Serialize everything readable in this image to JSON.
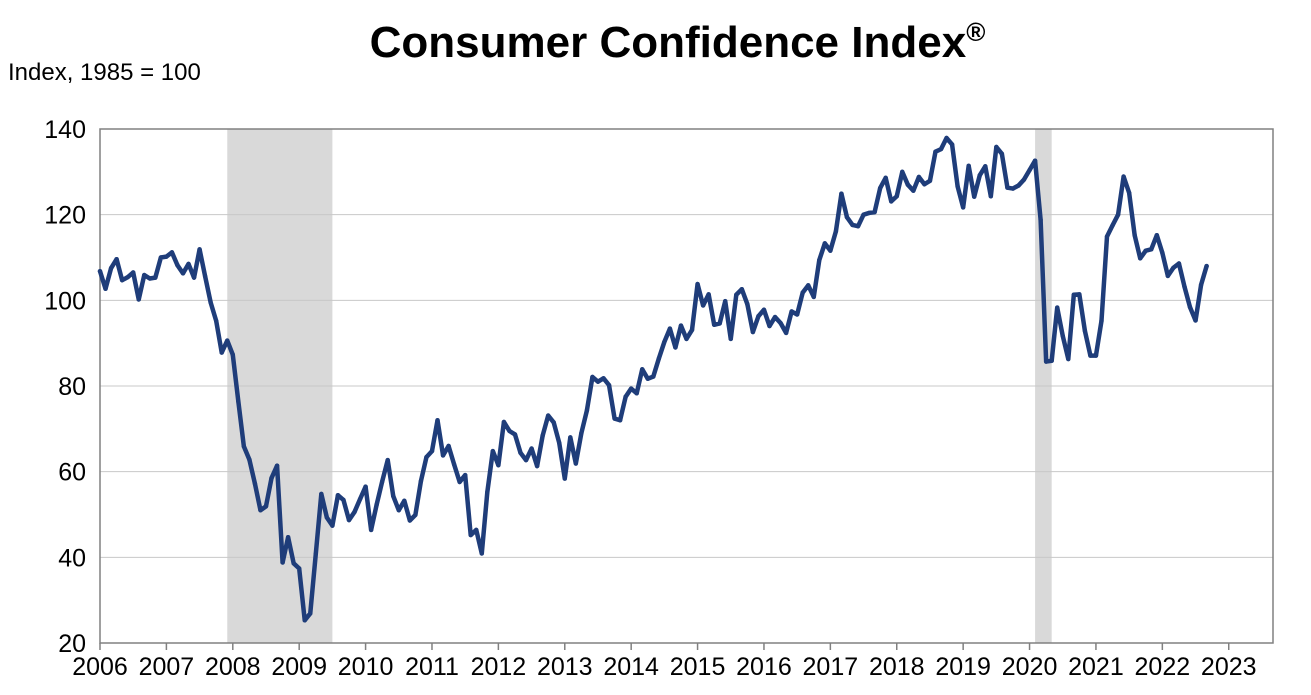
{
  "chart_data": {
    "type": "line",
    "title": "Consumer Confidence Index",
    "title_mark": "®",
    "ylabel": "Index, 1985 = 100",
    "xlabel": "",
    "ylim": [
      20,
      140
    ],
    "yticks": [
      20,
      40,
      60,
      80,
      100,
      120,
      140
    ],
    "xlim": [
      "2006-01",
      "2023-09"
    ],
    "xticks": [
      "2006",
      "2007",
      "2008",
      "2009",
      "2010",
      "2011",
      "2012",
      "2013",
      "2014",
      "2015",
      "2016",
      "2017",
      "2018",
      "2019",
      "2020",
      "2021",
      "2022",
      "2023"
    ],
    "grid": true,
    "legend": "none",
    "colors": {
      "line": "#1f3d7a",
      "recession": "#d9d9d9",
      "grid": "#c8c8c8",
      "axis": "#808080"
    },
    "recessions": [
      {
        "start": "2007-12",
        "end": "2009-06"
      },
      {
        "start": "2020-02",
        "end": "2020-04"
      }
    ],
    "series": [
      {
        "x_start": "2006-01",
        "frequency": "monthly",
        "values": [
          106.8,
          102.7,
          107.5,
          109.6,
          104.7,
          105.4,
          106.5,
          100.2,
          105.9,
          105.1,
          105.3,
          110.0,
          110.2,
          111.2,
          108.2,
          106.3,
          108.5,
          105.3,
          111.9,
          105.6,
          99.5,
          95.2,
          87.8,
          90.6,
          87.3,
          76.4,
          65.9,
          62.8,
          57.2,
          51.0,
          51.9,
          58.5,
          61.4,
          38.8,
          44.7,
          38.6,
          37.4,
          25.3,
          26.9,
          40.8,
          54.8,
          49.3,
          47.4,
          54.5,
          53.4,
          48.7,
          50.6,
          53.6,
          56.5,
          46.4,
          52.3,
          57.7,
          62.7,
          54.3,
          51.0,
          53.2,
          48.6,
          49.9,
          57.8,
          63.4,
          64.8,
          72.0,
          63.8,
          66.0,
          61.7,
          57.6,
          59.2,
          45.2,
          46.4,
          40.9,
          55.2,
          64.8,
          61.5,
          71.6,
          69.5,
          68.7,
          64.4,
          62.7,
          65.4,
          61.3,
          68.4,
          73.1,
          71.5,
          66.7,
          58.4,
          68.0,
          61.9,
          69.0,
          74.3,
          82.1,
          81.0,
          81.8,
          80.2,
          72.4,
          72.0,
          77.5,
          79.4,
          78.3,
          83.9,
          81.7,
          82.2,
          86.4,
          90.3,
          93.4,
          89.0,
          94.1,
          91.0,
          93.1,
          103.8,
          98.8,
          101.4,
          94.3,
          94.6,
          99.8,
          91.0,
          101.3,
          102.6,
          99.1,
          92.6,
          96.3,
          97.8,
          94.0,
          96.1,
          94.7,
          92.4,
          97.4,
          96.7,
          101.8,
          103.5,
          100.8,
          109.4,
          113.3,
          111.6,
          116.1,
          124.9,
          119.4,
          117.6,
          117.3,
          120.0,
          120.4,
          120.6,
          126.2,
          128.6,
          123.1,
          124.3,
          130.0,
          127.0,
          125.6,
          128.8,
          127.1,
          127.9,
          134.7,
          135.3,
          137.9,
          136.4,
          126.6,
          121.7,
          131.4,
          124.2,
          129.2,
          131.3,
          124.3,
          135.8,
          134.2,
          126.3,
          126.1,
          126.8,
          128.2,
          130.4,
          132.6,
          118.8,
          85.7,
          85.9,
          98.3,
          91.7,
          86.3,
          101.3,
          101.4,
          92.9,
          87.1,
          87.1,
          95.2,
          114.9,
          117.5,
          120.0,
          128.9,
          125.1,
          115.2,
          109.8,
          111.6,
          111.9,
          115.2,
          111.1,
          105.7,
          107.6,
          108.6,
          103.2,
          98.4,
          95.3,
          103.6,
          108.0
        ]
      }
    ]
  }
}
